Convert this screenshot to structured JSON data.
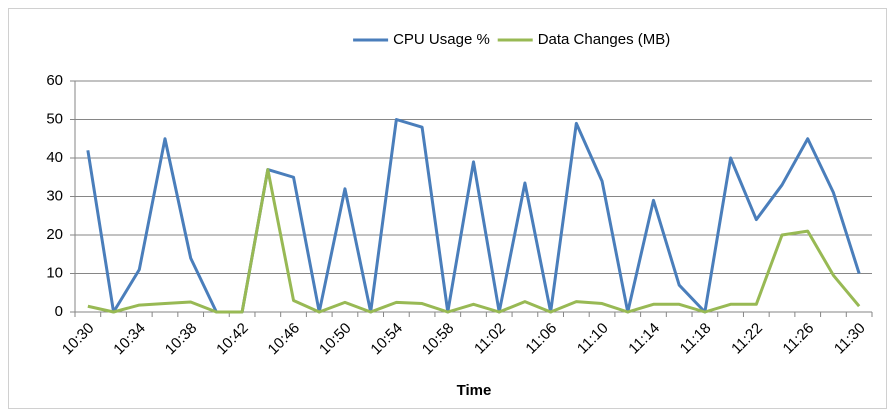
{
  "chart_data": {
    "type": "line",
    "x_label": "Time",
    "categories": [
      "10:30",
      null,
      "10:34",
      null,
      "10:38",
      null,
      "10:42",
      null,
      "10:46",
      null,
      "10:50",
      null,
      "10:54",
      null,
      "10:58",
      null,
      "11:02",
      null,
      "11:06",
      null,
      "11:10",
      null,
      "11:14",
      null,
      "11:18",
      null,
      "11:22",
      null,
      "11:26",
      null,
      "11:30"
    ],
    "series": [
      {
        "name": "CPU Usage %",
        "color": "#4a7ebb",
        "values": [
          42,
          0,
          11,
          45,
          14,
          0,
          0,
          37,
          35,
          0,
          32,
          0,
          50,
          48,
          0,
          39,
          0,
          33.5,
          0,
          49,
          34,
          0,
          29,
          7,
          0,
          40,
          24,
          33,
          45,
          31,
          10
        ]
      },
      {
        "name": "Data Changes (MB)",
        "color": "#98b954",
        "values": [
          1.5,
          0,
          1.8,
          2.2,
          2.6,
          0,
          0,
          37,
          3,
          0,
          2.5,
          0,
          2.5,
          2.2,
          0,
          2,
          0,
          2.7,
          0,
          2.7,
          2.2,
          0,
          2,
          2,
          0,
          2,
          2,
          20,
          21,
          9.5,
          1.5
        ]
      }
    ],
    "ylim": [
      0,
      60
    ],
    "yticks": [
      0,
      10,
      20,
      30,
      40,
      50,
      60
    ],
    "grid": true,
    "legend": "top"
  }
}
